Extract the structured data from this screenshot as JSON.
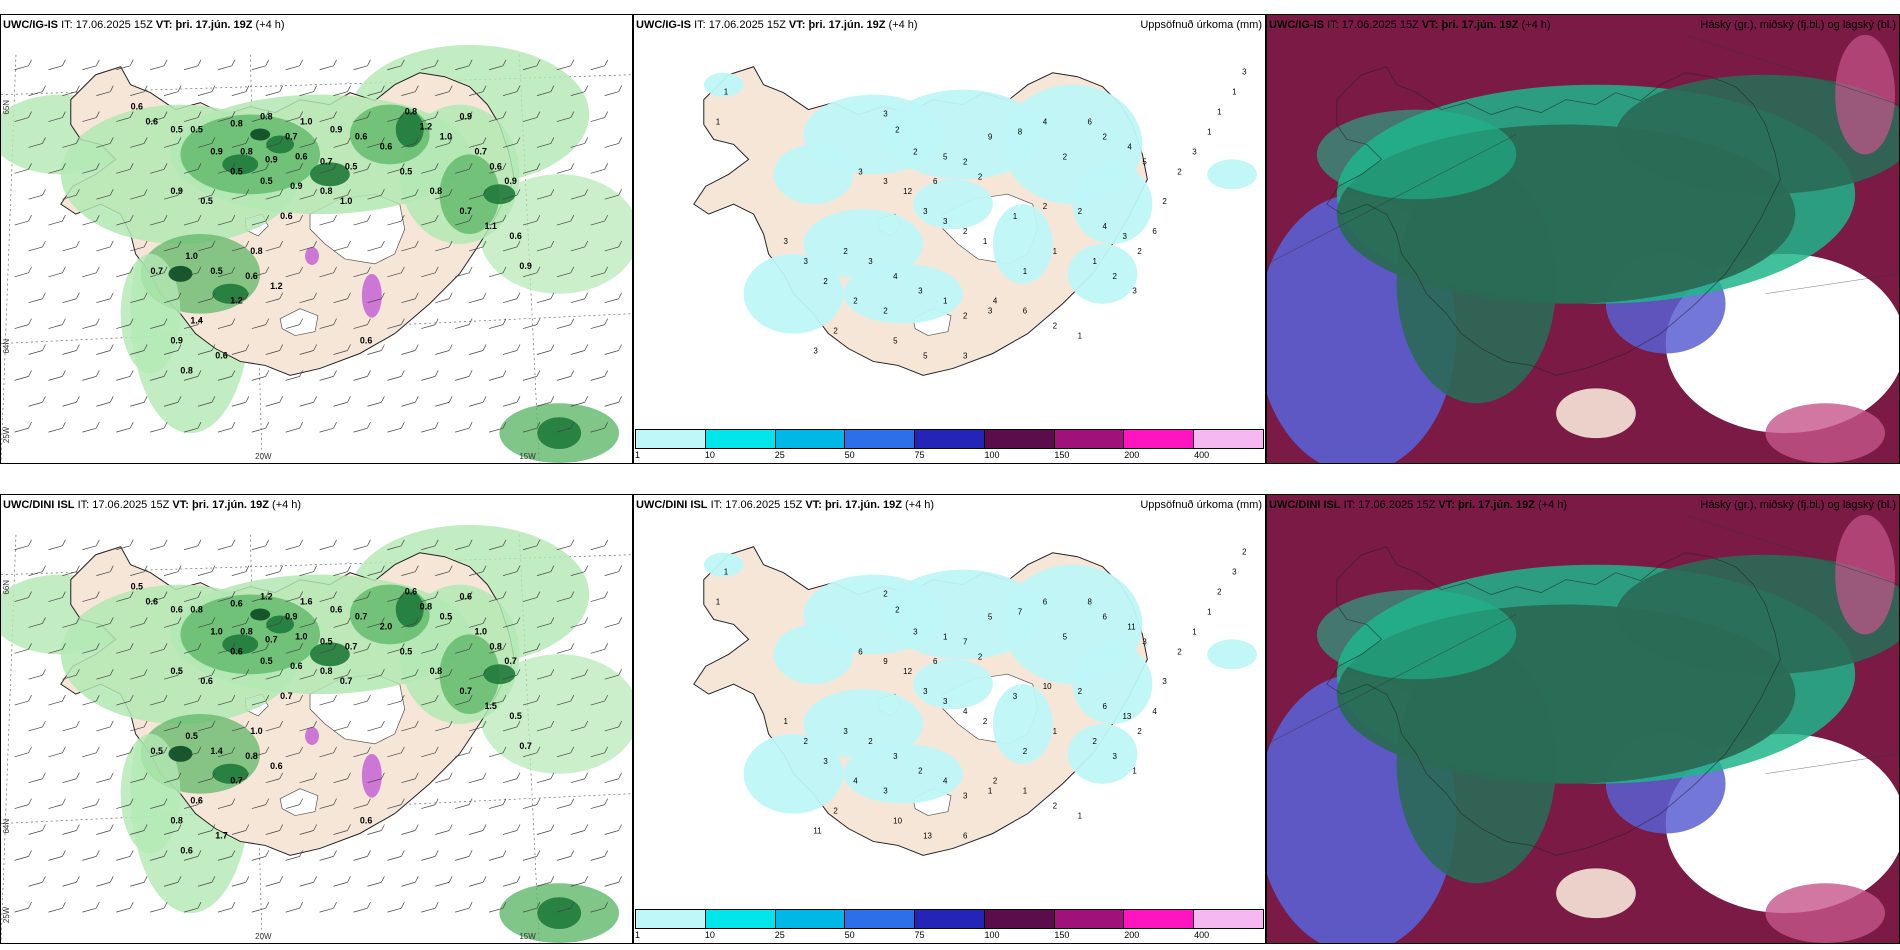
{
  "panels": [
    {
      "id": "p1",
      "model": "UWC/IG-IS",
      "it_label": "IT:",
      "it_value": "17.06.2025 15Z",
      "vt_label": "VT:",
      "vt_value": "þri. 17.jún. 19Z",
      "lead": "(+4 h)",
      "right_title": "",
      "axis_labels": [
        "65N",
        "64N",
        "25W",
        "20W",
        "15W"
      ],
      "values": [
        "0.6",
        "0.6",
        "0.5",
        "0.5",
        "0.8",
        "0.8",
        "0.7",
        "1.0",
        "0.9",
        "0.6",
        "0.9",
        "0.8",
        "0.9",
        "0.6",
        "0.7",
        "0.5",
        "0.6",
        "0.8",
        "1.2",
        "1.0",
        "0.9",
        "0.7",
        "0.6",
        "0.9",
        "0.5",
        "0.5",
        "0.9",
        "0.8",
        "1.0",
        "0.9",
        "0.5",
        "0.6",
        "1.0",
        "0.5",
        "0.6",
        "1.2",
        "1.2",
        "1.4",
        "0.9",
        "0.6",
        "0.5",
        "0.8",
        "0.7",
        "1.1",
        "0.6",
        "0.9",
        "0.6",
        "0.8",
        "0.7",
        "0.8"
      ]
    },
    {
      "id": "p2",
      "model": "UWC/IG-IS",
      "it_label": "IT:",
      "it_value": "17.06.2025 15Z",
      "vt_label": "VT:",
      "vt_value": "þri. 17.jún. 19Z",
      "lead": "(+4 h)",
      "right_title": "Uppsöfnuð úrkoma (mm)",
      "values": [
        "1",
        "1",
        "3",
        "2",
        "2",
        "5",
        "9",
        "8",
        "4",
        "2",
        "6",
        "2",
        "4",
        "5",
        "3",
        "3",
        "12",
        "6",
        "2",
        "2",
        "3",
        "3",
        "2",
        "1",
        "1",
        "2",
        "2",
        "4",
        "3",
        "2",
        "2",
        "3",
        "4",
        "3",
        "1",
        "2",
        "3",
        "6",
        "2",
        "1",
        "3",
        "3",
        "2",
        "2",
        "2",
        "2",
        "3",
        "5",
        "5",
        "3",
        "4",
        "1",
        "1",
        "1",
        "2",
        "3",
        "6",
        "2",
        "2",
        "3",
        "1",
        "1",
        "1",
        "3"
      ],
      "colorbar": {
        "colors": [
          "#bff7f8",
          "#00e6ea",
          "#00b8e6",
          "#2d6fe8",
          "#2424b8",
          "#5a0d4a",
          "#a0127a",
          "#ff14c0",
          "#f5b8f0"
        ],
        "labels": [
          "1",
          "10",
          "25",
          "50",
          "75",
          "100",
          "150",
          "200",
          "400"
        ]
      }
    },
    {
      "id": "p3",
      "model": "UWC/IG-IS",
      "it_label": "IT:",
      "it_value": "17.06.2025 15Z",
      "vt_label": "VT:",
      "vt_value": "þri. 17.jún. 19Z",
      "lead": "(+4 h)",
      "right_title": "Háský (gr.), miðský (fj.bl.) og lágský (bl.)"
    },
    {
      "id": "p4",
      "model": "UWC/DINI ISL",
      "it_label": "IT:",
      "it_value": "17.06.2025 15Z",
      "vt_label": "VT:",
      "vt_value": "þri. 17.jún. 19Z",
      "lead": "(+4 h)",
      "right_title": "",
      "axis_labels": [
        "66N",
        "64N",
        "25W",
        "20W",
        "15W"
      ],
      "values": [
        "0.5",
        "0.6",
        "0.6",
        "0.8",
        "0.6",
        "1.2",
        "0.9",
        "1.6",
        "0.6",
        "0.7",
        "1.0",
        "0.8",
        "0.7",
        "1.0",
        "0.5",
        "0.7",
        "2.0",
        "0.6",
        "0.8",
        "0.5",
        "0.6",
        "1.0",
        "0.8",
        "0.7",
        "0.6",
        "0.5",
        "0.6",
        "0.8",
        "0.7",
        "0.5",
        "0.6",
        "0.7",
        "0.5",
        "1.4",
        "0.8",
        "0.6",
        "0.7",
        "0.6",
        "0.8",
        "1.7",
        "0.5",
        "0.8",
        "0.7",
        "1.5",
        "0.5",
        "0.7",
        "0.6",
        "1.0",
        "0.5",
        "0.6"
      ]
    },
    {
      "id": "p5",
      "model": "UWC/DINI ISL",
      "it_label": "IT:",
      "it_value": "17.06.2025 15Z",
      "vt_label": "VT:",
      "vt_value": "þri. 17.jún. 19Z",
      "lead": "(+4 h)",
      "right_title": "Uppsöfnuð úrkoma (mm)",
      "values": [
        "1",
        "1",
        "2",
        "2",
        "3",
        "1",
        "5",
        "7",
        "6",
        "5",
        "8",
        "6",
        "11",
        "3",
        "6",
        "9",
        "12",
        "6",
        "7",
        "2",
        "3",
        "3",
        "4",
        "2",
        "3",
        "10",
        "2",
        "6",
        "13",
        "2",
        "3",
        "2",
        "3",
        "2",
        "4",
        "3",
        "1",
        "1",
        "2",
        "1",
        "1",
        "2",
        "3",
        "4",
        "3",
        "2",
        "11",
        "10",
        "13",
        "6",
        "2",
        "2",
        "1",
        "2",
        "3",
        "1",
        "4",
        "3",
        "2",
        "1",
        "1",
        "2",
        "3",
        "2"
      ],
      "colorbar": {
        "colors": [
          "#bff7f8",
          "#00e6ea",
          "#00b8e6",
          "#2d6fe8",
          "#2424b8",
          "#5a0d4a",
          "#a0127a",
          "#ff14c0",
          "#f5b8f0"
        ],
        "labels": [
          "1",
          "10",
          "25",
          "50",
          "75",
          "100",
          "150",
          "200",
          "400"
        ]
      }
    },
    {
      "id": "p6",
      "model": "UWC/DINI ISL",
      "it_label": "IT:",
      "it_value": "17.06.2025 15Z",
      "vt_label": "VT:",
      "vt_value": "þri. 17.jún. 19Z",
      "lead": "(+4 h)",
      "right_title": "Háský (gr.), miðský (fj.bl.) og lágský (bl.)"
    }
  ],
  "colors": {
    "land": "#f6e6d8",
    "rain_light": "#b3e8b3",
    "rain_mid": "#5fb86a",
    "rain_dark": "#1f7a3a",
    "rain_darkest": "#0c4a22",
    "glacier": "#ffffff",
    "precip_cyan": "#bff7f8",
    "cloud_high_green": "#2a6a55",
    "cloud_mid_teal": "#1fb58a",
    "cloud_low_magenta": "#7a1a45",
    "cloud_blue": "#5a5fd0",
    "cloud_pink": "#c6558a"
  }
}
